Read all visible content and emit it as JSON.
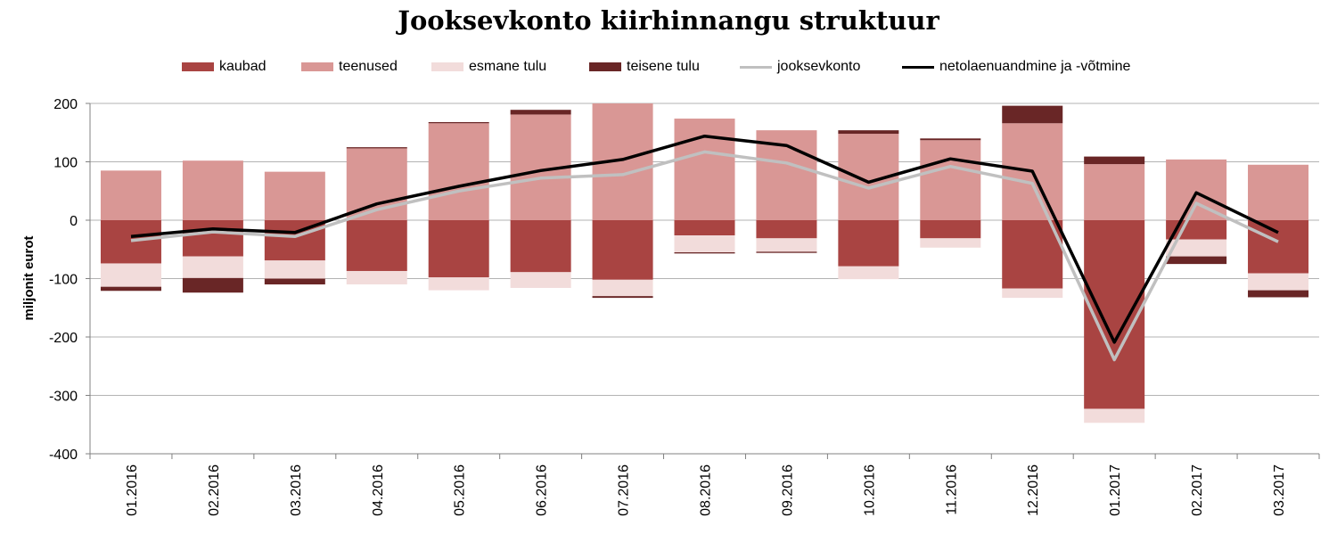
{
  "colors": {
    "kaubad": "#a94442",
    "teenused": "#d99795",
    "esmane_tulu": "#f2dcdb",
    "teisene_tulu": "#692626",
    "jooksevkonto": "#c0c0c0",
    "netolaenuandmine": "#000000",
    "grid": "#b3b3b3",
    "axis": "#808080"
  },
  "chart_data": {
    "type": "bar",
    "stacked": true,
    "title": "Jooksevkonto kiirhinnangu struktuur",
    "xlabel": "",
    "ylabel": "miljonit eurot",
    "ylim": [
      -400,
      200
    ],
    "yticks": [
      200,
      100,
      0,
      -100,
      -200,
      -300,
      -400
    ],
    "grid": true,
    "legend_position": "top",
    "categories": [
      "01.2016",
      "02.2016",
      "03.2016",
      "04.2016",
      "05.2016",
      "06.2016",
      "07.2016",
      "08.2016",
      "09.2016",
      "10.2016",
      "11.2016",
      "12.2016",
      "01.2017",
      "02.2017",
      "03.2017"
    ],
    "series": [
      {
        "name": "kaubad",
        "kind": "bar",
        "color_key": "kaubad",
        "values": [
          -74,
          -62,
          -69,
          -87,
          -98,
          -89,
          -102,
          -26,
          -31,
          -79,
          -31,
          -117,
          -323,
          -33,
          -91
        ]
      },
      {
        "name": "teenused",
        "kind": "bar",
        "color_key": "teenused",
        "values": [
          85,
          102,
          83,
          123,
          166,
          181,
          200,
          174,
          154,
          148,
          137,
          166,
          96,
          104,
          95
        ]
      },
      {
        "name": "esmane tulu",
        "kind": "bar",
        "color_key": "esmane_tulu",
        "values": [
          -40,
          -37,
          -31,
          -23,
          -22,
          -27,
          -28,
          -29,
          -23,
          -22,
          -16,
          -16,
          -24,
          -29,
          -29
        ]
      },
      {
        "name": "teisene tulu",
        "kind": "bar",
        "color_key": "teisene_tulu",
        "values": [
          -7,
          -25,
          -10,
          2,
          2,
          8,
          -3,
          -2,
          -2,
          6,
          3,
          30,
          13,
          -13,
          -12
        ]
      },
      {
        "name": "jooksevkonto",
        "kind": "line",
        "color_key": "jooksevkonto",
        "values": [
          -35,
          -20,
          -28,
          18,
          50,
          72,
          78,
          117,
          98,
          55,
          92,
          63,
          -239,
          29,
          -37
        ]
      },
      {
        "name": "netolaenuandmine ja -võtmine",
        "kind": "line",
        "color_key": "netolaenuandmine",
        "values": [
          -28,
          -15,
          -21,
          28,
          58,
          85,
          104,
          144,
          128,
          65,
          105,
          84,
          -209,
          47,
          -21
        ]
      }
    ]
  }
}
